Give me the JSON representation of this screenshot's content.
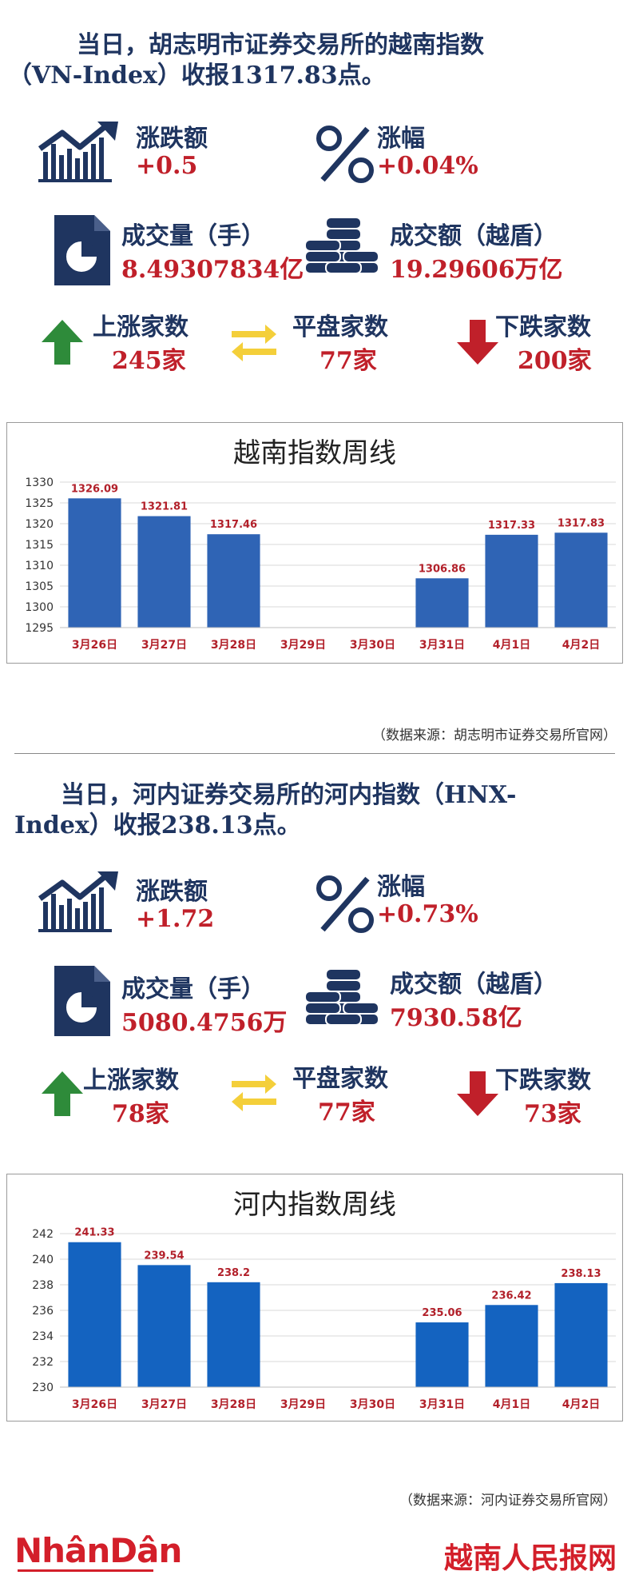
{
  "vn": {
    "headline_1": "当日，胡志明市证券交易所的越南指数",
    "headline_2": "（VN-Index）收报1317.83点。",
    "change_label": "涨跌额",
    "change_value": "+0.5",
    "pct_label": "涨幅",
    "pct_value": "+0.04%",
    "volume_label": "成交量（手）",
    "volume_value": "8.49307834亿",
    "turnover_label": "成交额（越盾）",
    "turnover_value": "19.29606万亿",
    "up_label": "上涨家数",
    "up_value": "245家",
    "flat_label": "平盘家数",
    "flat_value": "77家",
    "down_label": "下跌家数",
    "down_value": "200家",
    "source": "（数据来源：胡志明市证券交易所官网）"
  },
  "hnx": {
    "headline_1": "当日，河内证券交易所的河内指数（HNX-",
    "headline_2": "Index）收报238.13点。",
    "change_label": "涨跌额",
    "change_value": "+1.72",
    "pct_label": "涨幅",
    "pct_value": "+0.73%",
    "volume_label": "成交量（手）",
    "volume_value": "5080.4756万",
    "turnover_label": "成交额（越盾）",
    "turnover_value": "7930.58亿",
    "up_label": "上涨家数",
    "up_value": "78家",
    "flat_label": "平盘家数",
    "flat_value": "77家",
    "down_label": "下跌家数",
    "down_value": "73家",
    "source": "（数据来源：河内证券交易所官网）"
  },
  "footer": {
    "brand_left": "NhânDân",
    "brand_right": "越南人民报网"
  },
  "colors": {
    "navy": "#1f3560",
    "red": "#c0202a",
    "green": "#2e8b3a",
    "yellow": "#f4cf3a",
    "bar_vn": "#2f64b5",
    "bar_hnx": "#1463c0"
  },
  "chart_data": [
    {
      "type": "bar",
      "title": "越南指数周线",
      "categories": [
        "3月26日",
        "3月27日",
        "3月28日",
        "3月29日",
        "3月30日",
        "3月31日",
        "4月1日",
        "4月2日"
      ],
      "values": [
        1326.09,
        1321.81,
        1317.46,
        null,
        null,
        1306.86,
        1317.33,
        1317.83
      ],
      "value_labels": [
        "1326.09",
        "1321.81",
        "1317.46",
        "",
        "",
        "1306.86",
        "1317.33",
        "1317.83"
      ],
      "yticks": [
        "1330",
        "1325",
        "1320",
        "1315",
        "1310",
        "1305",
        "1300",
        "1295"
      ],
      "ylim": [
        1295,
        1330
      ],
      "grid": true
    },
    {
      "type": "bar",
      "title": "河内指数周线",
      "categories": [
        "3月26日",
        "3月27日",
        "3月28日",
        "3月29日",
        "3月30日",
        "3月31日",
        "4月1日",
        "4月2日"
      ],
      "values": [
        241.33,
        239.54,
        238.2,
        null,
        null,
        235.06,
        236.42,
        238.13
      ],
      "value_labels": [
        "241.33",
        "239.54",
        "238.2",
        "",
        "",
        "235.06",
        "236.42",
        "238.13"
      ],
      "yticks": [
        "242",
        "240",
        "238",
        "236",
        "234",
        "232",
        "230"
      ],
      "ylim": [
        230,
        242
      ],
      "grid": true
    }
  ]
}
